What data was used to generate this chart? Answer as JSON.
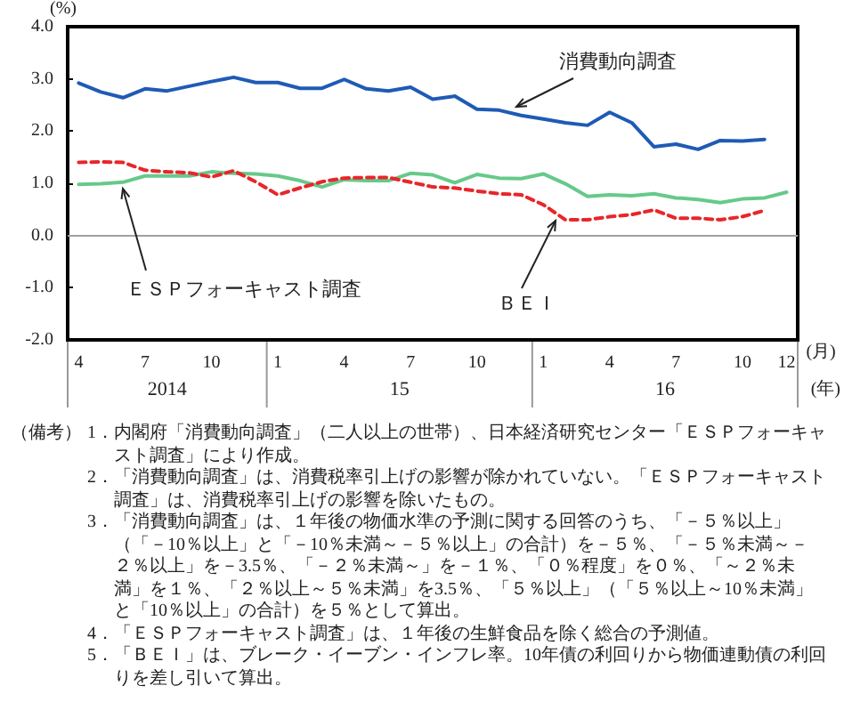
{
  "chart_data": {
    "type": "line",
    "ylabel": "(%)",
    "xlabel": "(月)",
    "categories": [
      "4",
      null,
      null,
      "7",
      null,
      null,
      "10",
      null,
      null,
      "1",
      null,
      null,
      "4",
      null,
      null,
      "7",
      null,
      null,
      "10",
      null,
      null,
      "1",
      null,
      null,
      "4",
      null,
      null,
      "7",
      null,
      null,
      "10",
      null,
      "12"
    ],
    "series": [
      {
        "name": "消費動向調査",
        "color": "#1f5bb5",
        "values": [
          2.92,
          2.75,
          2.64,
          2.81,
          2.77,
          2.86,
          2.95,
          3.03,
          2.93,
          2.93,
          2.82,
          2.82,
          2.99,
          2.81,
          2.77,
          2.84,
          2.61,
          2.67,
          2.42,
          2.4,
          2.3,
          2.23,
          2.16,
          2.11,
          2.36,
          2.16,
          1.7,
          1.75,
          1.65,
          1.82,
          1.81,
          1.84,
          null
        ]
      },
      {
        "name": "ＥＳＰフォーキャスト調査",
        "color": "#66c98a",
        "values": [
          0.98,
          0.99,
          1.02,
          1.14,
          1.14,
          1.14,
          1.22,
          1.19,
          1.18,
          1.14,
          1.05,
          0.93,
          1.07,
          1.05,
          1.05,
          1.19,
          1.16,
          1.01,
          1.17,
          1.1,
          1.09,
          1.18,
          0.99,
          0.75,
          0.78,
          0.76,
          0.8,
          0.72,
          0.69,
          0.63,
          0.7,
          0.72,
          0.83
        ]
      },
      {
        "name": "ＢＥＩ",
        "color": "#e8262a",
        "line_style": "dashed",
        "values": [
          1.4,
          1.41,
          1.4,
          1.25,
          1.22,
          1.2,
          1.12,
          1.24,
          1.03,
          0.78,
          0.91,
          1.03,
          1.1,
          1.11,
          1.11,
          1.02,
          0.93,
          0.91,
          0.85,
          0.8,
          0.78,
          0.59,
          0.3,
          0.3,
          0.36,
          0.4,
          0.49,
          0.33,
          0.33,
          0.3,
          0.36,
          0.48,
          null
        ]
      }
    ],
    "ylim": [
      -2,
      4
    ],
    "yticks": [
      {
        "value": -2,
        "label": "-2.0"
      },
      {
        "value": -1,
        "label": "-1.0"
      },
      {
        "value": 0,
        "label": "0.0"
      },
      {
        "value": 1,
        "label": "1.0"
      },
      {
        "value": 2,
        "label": "2.0"
      },
      {
        "value": 3,
        "label": "3.0"
      },
      {
        "value": 4,
        "label": "4.0"
      }
    ],
    "ref_lines": [
      {
        "axis": "y",
        "value": 0,
        "color": "#a0a0a0"
      }
    ],
    "grid": false,
    "legend": false,
    "marker": "none",
    "annotations": [
      "2014",
      "15",
      "16",
      "(年)",
      "（備考）",
      "1．内閣府「消費動向調査」（二人以上の世帯）、日本経済研究センター「ＥＳＰフォーキャスト調査」により作成。",
      "2．「消費動向調査」は、消費税率引上げの影響が除かれていない。「ＥＳＰフォーキャスト調査」は、消費税率引上げの影響を除いたもの。",
      "3．「消費動向調査」は、１年後の物価水準の予測に関する回答のうち、「－５％以上」（「－10％以上」と「－10％未満～－５％以上」の合計）を－５％、「－５％未満～－２％以上」を－3.5％、「－２％未満～」を－１％、「０％程度」を０％、「～２％未満」を１％、「２％以上～５％未満」を3.5％、「５％以上」（「５％以上～10％未満」と「10％以上」の合計）を５％として算出。",
      "4．「ＥＳＰフォーキャスト調査」は、１年後の生鮮食品を除く総合の予測値。",
      "5．「ＢＥＩ」は、ブレーク・イーブン・インフレ率。10年債の利回りから物価連動債の利回りを差し引いて算出。"
    ]
  }
}
